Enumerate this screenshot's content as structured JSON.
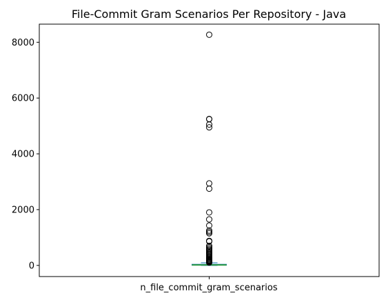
{
  "chart_data": {
    "type": "box",
    "title": "File-Commit Gram Scenarios Per Repository - Java",
    "categories": [
      "n_file_commit_gram_scenarios"
    ],
    "ylim": [
      -400,
      8650
    ],
    "yticks": [
      0,
      2000,
      4000,
      6000,
      8000
    ],
    "ytick_labels": [
      "0",
      "2000",
      "4000",
      "6000",
      "8000"
    ],
    "grid": false,
    "box": {
      "whisker_low": 0,
      "q1": 4,
      "median": 15,
      "q3": 40,
      "whisker_high": 95
    },
    "outliers": [
      8270,
      5250,
      5240,
      5050,
      4950,
      2940,
      2750,
      1900,
      1650,
      1430,
      1250,
      1200,
      1150,
      880,
      860,
      700,
      650,
      600,
      560,
      520,
      480,
      440,
      400,
      360,
      320,
      280,
      250,
      220,
      190,
      170,
      150,
      130,
      115,
      100
    ],
    "colors": {
      "box": "#1f77b4",
      "median": "#2ca02c",
      "outlier_edge": "#000000"
    }
  }
}
